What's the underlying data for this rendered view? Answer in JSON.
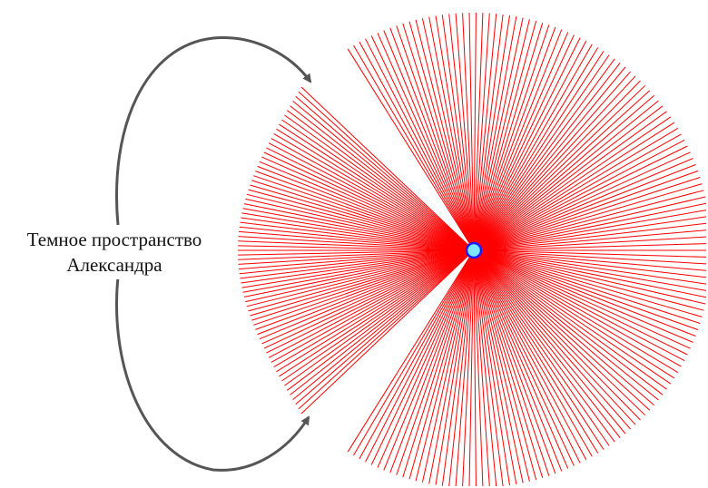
{
  "diagram": {
    "label_line1": "Темное пространство",
    "label_line2": "Александра",
    "colors": {
      "rays": "#ff0000",
      "arrows": "#555555",
      "center_fill": "#7fe6ff",
      "center_stroke": "#1a1aff"
    }
  }
}
